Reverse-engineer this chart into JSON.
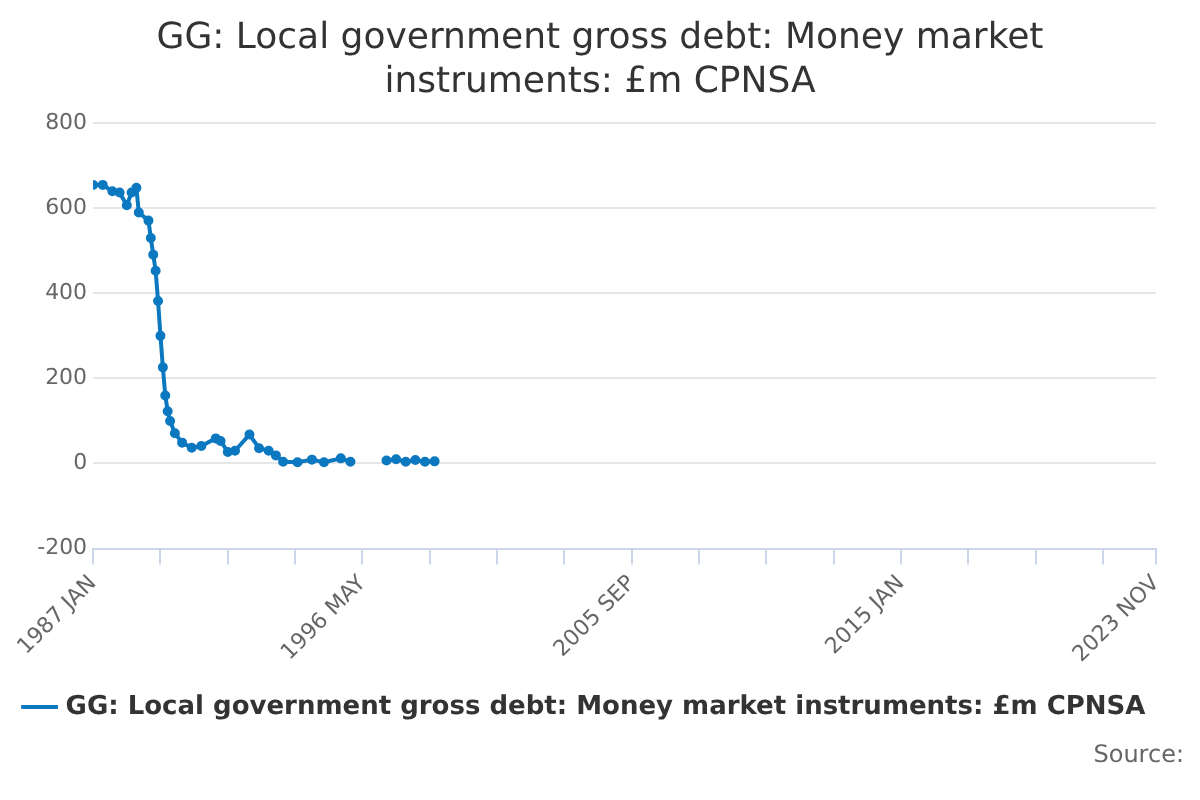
{
  "chart_data": {
    "type": "line",
    "title": "GG: Local government gross debt: Money market instruments: £m CPNSA",
    "x": [
      "1987-01",
      "1987-05",
      "1987-09",
      "1987-12",
      "1988-03",
      "1988-05",
      "1988-07",
      "1988-08",
      "1988-12",
      "1989-01",
      "1989-02",
      "1989-03",
      "1989-04",
      "1989-05",
      "1989-06",
      "1989-07",
      "1989-08",
      "1989-09",
      "1989-11",
      "1990-02",
      "1990-06",
      "1990-10",
      "1991-04",
      "1991-06",
      "1991-09",
      "1991-12",
      "1992-06",
      "1992-10",
      "1993-02",
      "1993-05",
      "1993-08",
      "1994-02",
      "1994-08",
      "1995-01",
      "1995-08",
      "1995-12",
      "1996-06",
      "1997-03",
      "1997-07",
      "1997-11",
      "1998-03",
      "1998-07",
      "1998-11"
    ],
    "series": [
      {
        "name": "GG: Local government gross debt: Money market instruments: £m CPNSA",
        "color": "#0b78c0",
        "values": [
          655,
          655,
          640,
          637,
          607,
          637,
          648,
          590,
          571,
          530,
          491,
          453,
          382,
          300,
          226,
          160,
          123,
          100,
          71,
          49,
          37,
          41,
          59,
          53,
          27,
          30,
          68,
          36,
          30,
          19,
          4,
          3,
          9,
          3,
          12,
          4,
          null,
          7,
          10,
          4,
          8,
          4,
          5
        ]
      }
    ],
    "xlim": [
      "1987-01",
      "2023-11"
    ],
    "xticks": [
      {
        "value": "1987-01",
        "label": "1987 JAN"
      },
      {
        "value": "1989-05",
        "label": null
      },
      {
        "value": "1991-09",
        "label": null
      },
      {
        "value": "1994-01",
        "label": null
      },
      {
        "value": "1996-05",
        "label": "1996 MAY"
      },
      {
        "value": "1998-09",
        "label": null
      },
      {
        "value": "2001-01",
        "label": null
      },
      {
        "value": "2003-05",
        "label": null
      },
      {
        "value": "2005-09",
        "label": "2005 SEP"
      },
      {
        "value": "2008-01",
        "label": null
      },
      {
        "value": "2010-05",
        "label": null
      },
      {
        "value": "2012-09",
        "label": null
      },
      {
        "value": "2015-01",
        "label": "2015 JAN"
      },
      {
        "value": "2017-05",
        "label": null
      },
      {
        "value": "2019-09",
        "label": null
      },
      {
        "value": "2022-01",
        "label": null
      },
      {
        "value": "2023-11",
        "label": "2023 NOV"
      }
    ],
    "ylim": [
      -200,
      800
    ],
    "yticks": [
      -200,
      0,
      200,
      400,
      600,
      800
    ],
    "grid": "y",
    "legend": "bottom",
    "marker": "circle",
    "line_style": "solid",
    "annotations": [
      "Source:"
    ]
  }
}
